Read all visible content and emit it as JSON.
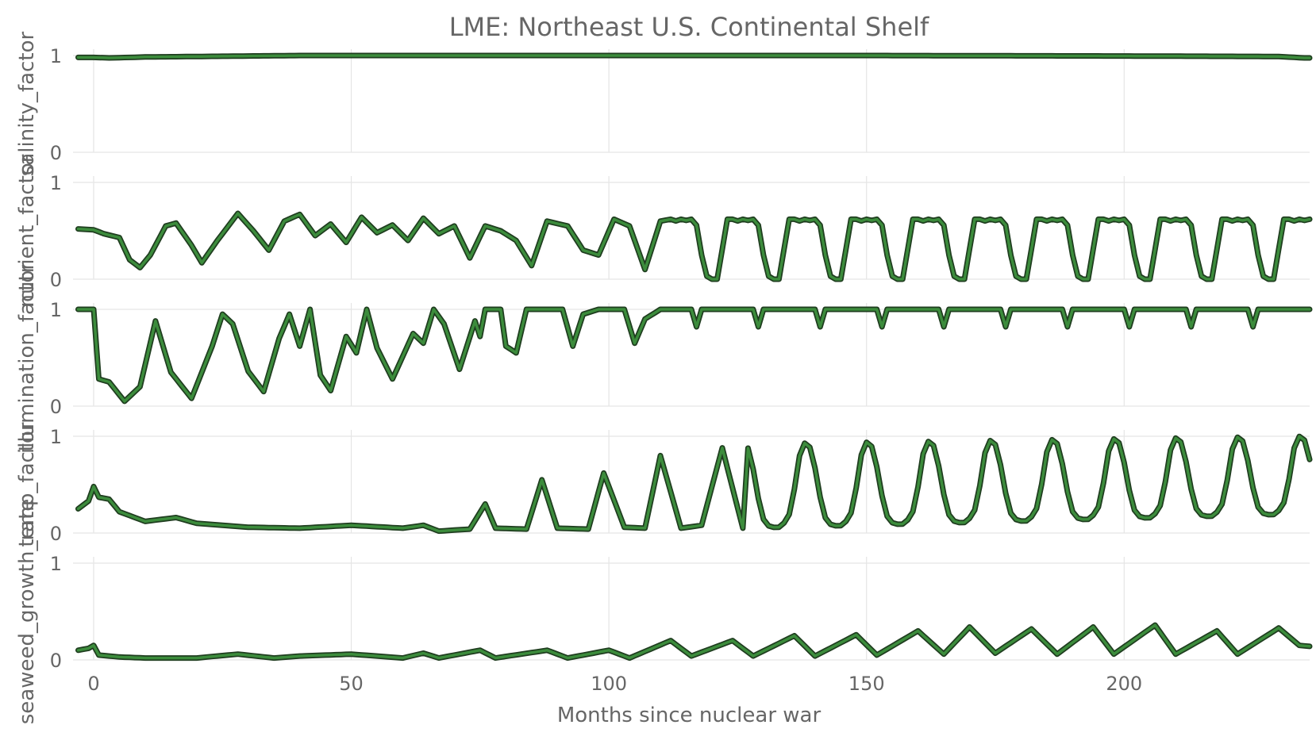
{
  "chart_data": {
    "type": "line",
    "title": "LME: Northeast U.S. Continental Shelf",
    "xlabel": "Months since nuclear war",
    "xlim": [
      -4,
      236
    ],
    "xticks": [
      0,
      50,
      100,
      150,
      200
    ],
    "yticks": [
      0,
      1
    ],
    "ylim": [
      0,
      1
    ],
    "x_start": -3,
    "line_color": "#3c8c3c",
    "outline_color": "#1f3d1f",
    "panels": [
      {
        "ylabel": "salinity_factor",
        "keypoints": [
          [
            -3,
            0.98
          ],
          [
            0,
            0.98
          ],
          [
            3,
            0.975
          ],
          [
            10,
            0.985
          ],
          [
            20,
            0.99
          ],
          [
            40,
            1.0
          ],
          [
            100,
            1.0
          ],
          [
            150,
            1.0
          ],
          [
            200,
            0.995
          ],
          [
            230,
            0.99
          ],
          [
            235,
            0.975
          ]
        ],
        "params": {
          "mode": "flat"
        }
      },
      {
        "ylabel": "nutrient_factor",
        "keypoints": [
          [
            -3,
            0.52
          ],
          [
            0,
            0.51
          ],
          [
            2,
            0.47
          ],
          [
            5,
            0.43
          ],
          [
            7,
            0.2
          ],
          [
            9,
            0.12
          ],
          [
            11,
            0.25
          ],
          [
            14,
            0.55
          ],
          [
            16,
            0.58
          ],
          [
            19,
            0.35
          ],
          [
            21,
            0.17
          ],
          [
            24,
            0.4
          ],
          [
            28,
            0.68
          ],
          [
            31,
            0.5
          ],
          [
            34,
            0.3
          ],
          [
            37,
            0.6
          ],
          [
            40,
            0.67
          ],
          [
            43,
            0.45
          ],
          [
            46,
            0.57
          ],
          [
            49,
            0.38
          ],
          [
            52,
            0.64
          ],
          [
            55,
            0.48
          ],
          [
            58,
            0.56
          ],
          [
            61,
            0.4
          ],
          [
            64,
            0.63
          ],
          [
            67,
            0.47
          ],
          [
            70,
            0.55
          ],
          [
            73,
            0.22
          ],
          [
            76,
            0.55
          ],
          [
            79,
            0.5
          ],
          [
            82,
            0.4
          ],
          [
            85,
            0.14
          ],
          [
            88,
            0.6
          ],
          [
            92,
            0.55
          ],
          [
            95,
            0.3
          ],
          [
            98,
            0.25
          ],
          [
            101,
            0.62
          ],
          [
            104,
            0.55
          ],
          [
            107,
            0.1
          ],
          [
            110,
            0.6
          ],
          [
            112,
            0.62
          ]
        ],
        "params": {
          "mode": "seasonal",
          "max": 0.62,
          "min": 0.0,
          "offset": 9
        }
      },
      {
        "ylabel": "illumination_factor",
        "keypoints": [
          [
            -3,
            1.0
          ],
          [
            0,
            1.0
          ],
          [
            1,
            0.28
          ],
          [
            3,
            0.25
          ],
          [
            6,
            0.05
          ],
          [
            9,
            0.2
          ],
          [
            12,
            0.88
          ],
          [
            15,
            0.35
          ],
          [
            19,
            0.08
          ],
          [
            23,
            0.62
          ],
          [
            25,
            0.95
          ],
          [
            27,
            0.85
          ],
          [
            30,
            0.36
          ],
          [
            33,
            0.15
          ],
          [
            36,
            0.7
          ],
          [
            38,
            0.95
          ],
          [
            40,
            0.62
          ],
          [
            42,
            1.0
          ],
          [
            44,
            0.32
          ],
          [
            46,
            0.16
          ],
          [
            49,
            0.72
          ],
          [
            51,
            0.55
          ],
          [
            53,
            1.0
          ],
          [
            55,
            0.6
          ],
          [
            58,
            0.28
          ],
          [
            62,
            0.75
          ],
          [
            64,
            0.65
          ],
          [
            66,
            1.0
          ],
          [
            68,
            0.85
          ],
          [
            71,
            0.38
          ],
          [
            74,
            0.88
          ],
          [
            75,
            0.72
          ],
          [
            76,
            1.0
          ],
          [
            79,
            1.0
          ],
          [
            80,
            0.62
          ],
          [
            82,
            0.55
          ],
          [
            84,
            1.0
          ],
          [
            91,
            1.0
          ],
          [
            93,
            0.62
          ],
          [
            95,
            0.95
          ],
          [
            98,
            1.0
          ],
          [
            103,
            1.0
          ],
          [
            105,
            0.65
          ],
          [
            107,
            0.9
          ],
          [
            110,
            1.0
          ]
        ],
        "params": {
          "mode": "mostlyOne",
          "dipDepth": 0.18,
          "offset": 3
        }
      },
      {
        "ylabel": "temp_factor",
        "keypoints": [
          [
            -3,
            0.25
          ],
          [
            -1,
            0.33
          ],
          [
            0,
            0.48
          ],
          [
            1,
            0.37
          ],
          [
            3,
            0.35
          ],
          [
            5,
            0.22
          ],
          [
            10,
            0.12
          ],
          [
            16,
            0.16
          ],
          [
            20,
            0.1
          ],
          [
            30,
            0.06
          ],
          [
            40,
            0.05
          ],
          [
            50,
            0.08
          ],
          [
            60,
            0.05
          ],
          [
            64,
            0.08
          ],
          [
            67,
            0.02
          ],
          [
            73,
            0.04
          ],
          [
            76,
            0.3
          ],
          [
            78,
            0.05
          ],
          [
            84,
            0.04
          ],
          [
            87,
            0.55
          ],
          [
            90,
            0.05
          ],
          [
            96,
            0.04
          ],
          [
            99,
            0.62
          ],
          [
            103,
            0.06
          ],
          [
            107,
            0.05
          ],
          [
            110,
            0.8
          ],
          [
            114,
            0.05
          ],
          [
            118,
            0.08
          ],
          [
            122,
            0.88
          ],
          [
            126,
            0.05
          ]
        ],
        "params": {
          "mode": "growingSeasonal",
          "start": 126,
          "end": 236,
          "maxStart": 0.92,
          "maxEnd": 1.0,
          "minStart": 0.05,
          "minEnd": 0.2,
          "offset": 11
        }
      },
      {
        "ylabel": "seaweed_growth_rate",
        "keypoints": [
          [
            -3,
            0.1
          ],
          [
            -1,
            0.12
          ],
          [
            0,
            0.15
          ],
          [
            1,
            0.05
          ],
          [
            5,
            0.03
          ],
          [
            10,
            0.02
          ],
          [
            20,
            0.02
          ],
          [
            28,
            0.06
          ],
          [
            35,
            0.02
          ],
          [
            40,
            0.04
          ],
          [
            50,
            0.06
          ],
          [
            60,
            0.02
          ],
          [
            64,
            0.07
          ],
          [
            67,
            0.02
          ],
          [
            75,
            0.1
          ],
          [
            78,
            0.02
          ],
          [
            88,
            0.1
          ],
          [
            92,
            0.02
          ],
          [
            100,
            0.1
          ],
          [
            104,
            0.02
          ],
          [
            112,
            0.2
          ],
          [
            116,
            0.04
          ],
          [
            124,
            0.2
          ],
          [
            128,
            0.04
          ],
          [
            136,
            0.25
          ],
          [
            140,
            0.04
          ],
          [
            148,
            0.26
          ],
          [
            152,
            0.05
          ],
          [
            160,
            0.3
          ],
          [
            165,
            0.06
          ],
          [
            170,
            0.34
          ],
          [
            175,
            0.07
          ],
          [
            182,
            0.32
          ],
          [
            187,
            0.06
          ],
          [
            194,
            0.34
          ],
          [
            198,
            0.06
          ],
          [
            206,
            0.36
          ],
          [
            210,
            0.06
          ],
          [
            218,
            0.3
          ],
          [
            222,
            0.06
          ],
          [
            230,
            0.33
          ],
          [
            234,
            0.15
          ],
          [
            236,
            0.14
          ]
        ],
        "params": {
          "mode": "keypointsOnly"
        }
      }
    ]
  }
}
